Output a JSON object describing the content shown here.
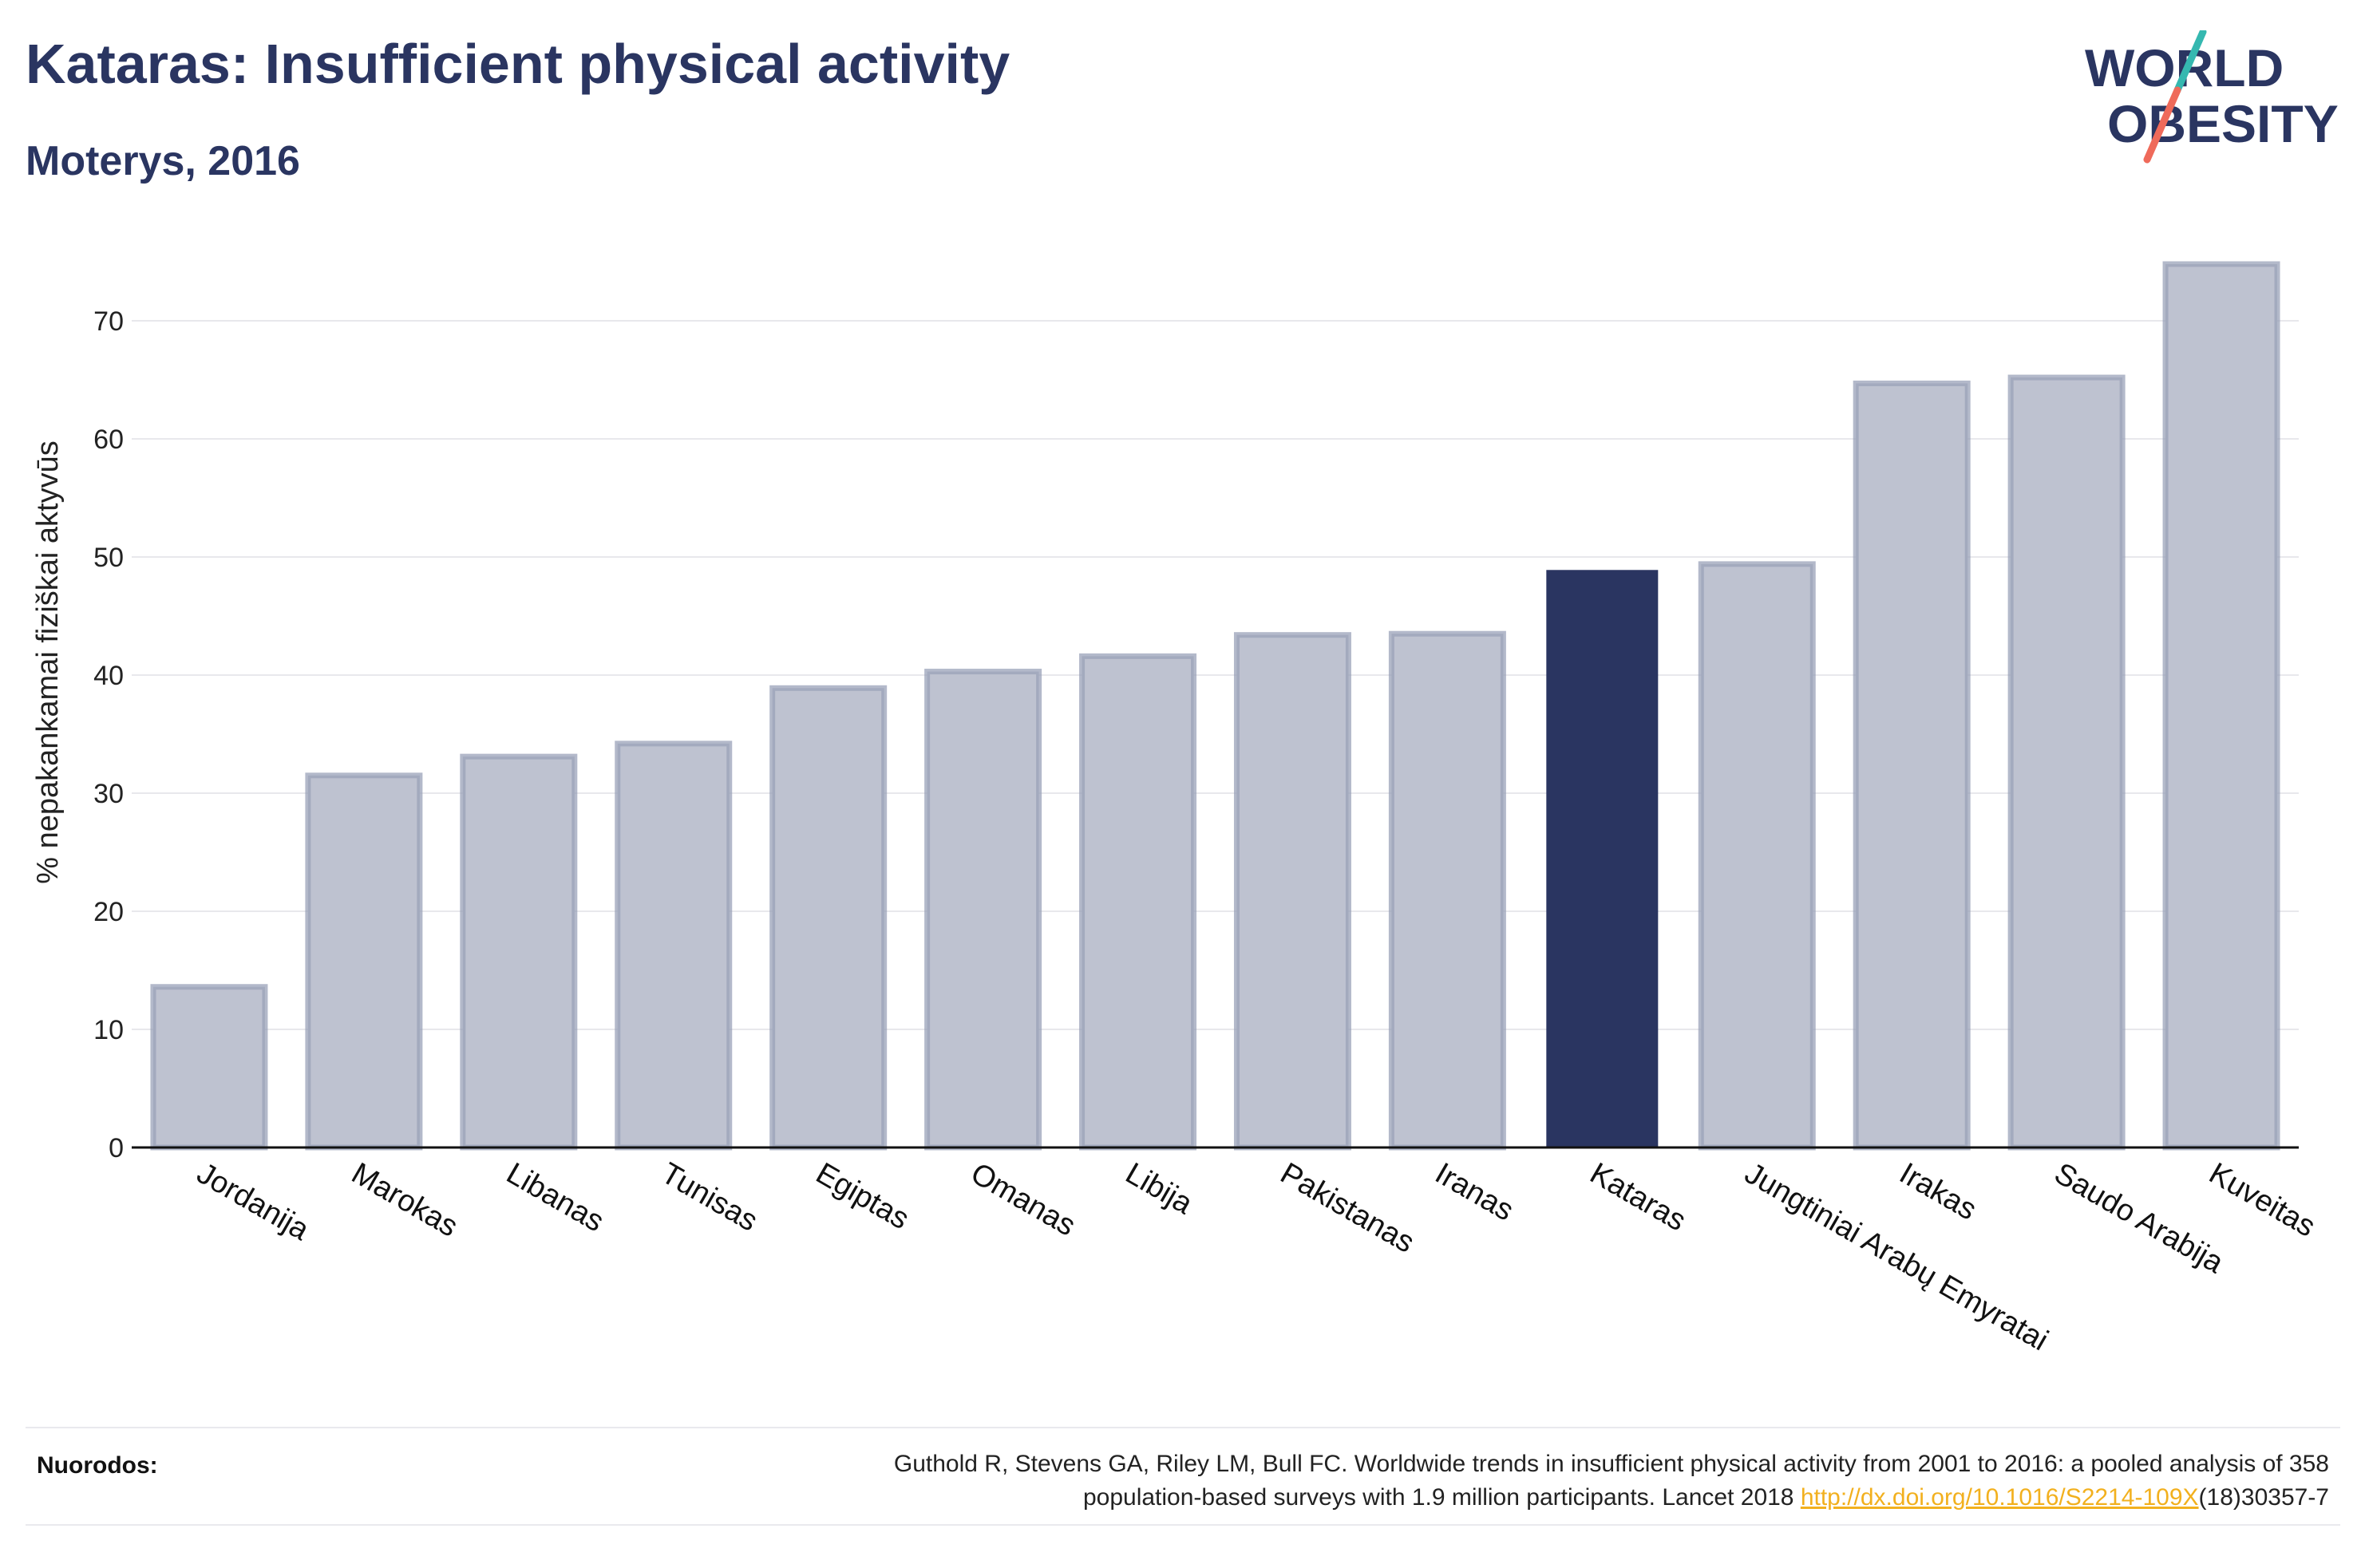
{
  "header": {
    "title": "Kataras: Insufficient physical activity",
    "subtitle": "Moterys, 2016"
  },
  "logo": {
    "line1": "WORLD",
    "line2": "OBESITY",
    "colors": {
      "text": "#2a3561",
      "slash_top": "#35b8b0",
      "slash_bottom": "#ef6a5a"
    }
  },
  "colors": {
    "bar": "#bec2d0",
    "bar_border": "#9aa1b8",
    "highlight": "#2a3561",
    "grid": "#e8e8ec",
    "axis": "#111111"
  },
  "chart_data": {
    "type": "bar",
    "title": "Kataras: Insufficient physical activity",
    "subtitle": "Moterys, 2016",
    "xlabel": "",
    "ylabel": "% nepakankamai fiziškai aktyvūs",
    "ylim": [
      0,
      77
    ],
    "yticks": [
      0,
      10,
      20,
      30,
      40,
      50,
      60,
      70
    ],
    "grid": true,
    "legend": "none",
    "highlight": "Kataras",
    "categories": [
      "Jordanija",
      "Marokas",
      "Libanas",
      "Tunisas",
      "Egiptas",
      "Omanas",
      "Libija",
      "Pakistanas",
      "Iranas",
      "Kataras",
      "Jungtiniai Arabų Emyratai",
      "Irakas",
      "Saudo Arabija",
      "Kuveitas"
    ],
    "values": [
      13.6,
      31.5,
      33.1,
      34.2,
      38.9,
      40.3,
      41.6,
      43.4,
      43.5,
      48.9,
      49.4,
      64.7,
      65.2,
      74.8
    ]
  },
  "footer": {
    "label": "Nuorodos:",
    "citation_line1": "Guthold R, Stevens GA, Riley LM, Bull FC. Worldwide trends in insufficient physical activity from 2001 to 2016: a pooled analysis of 358",
    "citation_line2_prefix": "population-based surveys with 1.9 million participants. Lancet 2018 ",
    "citation_link": "http://dx.doi.org/10.1016/S2214-109X",
    "citation_line2_suffix": "(18)30357-7"
  }
}
